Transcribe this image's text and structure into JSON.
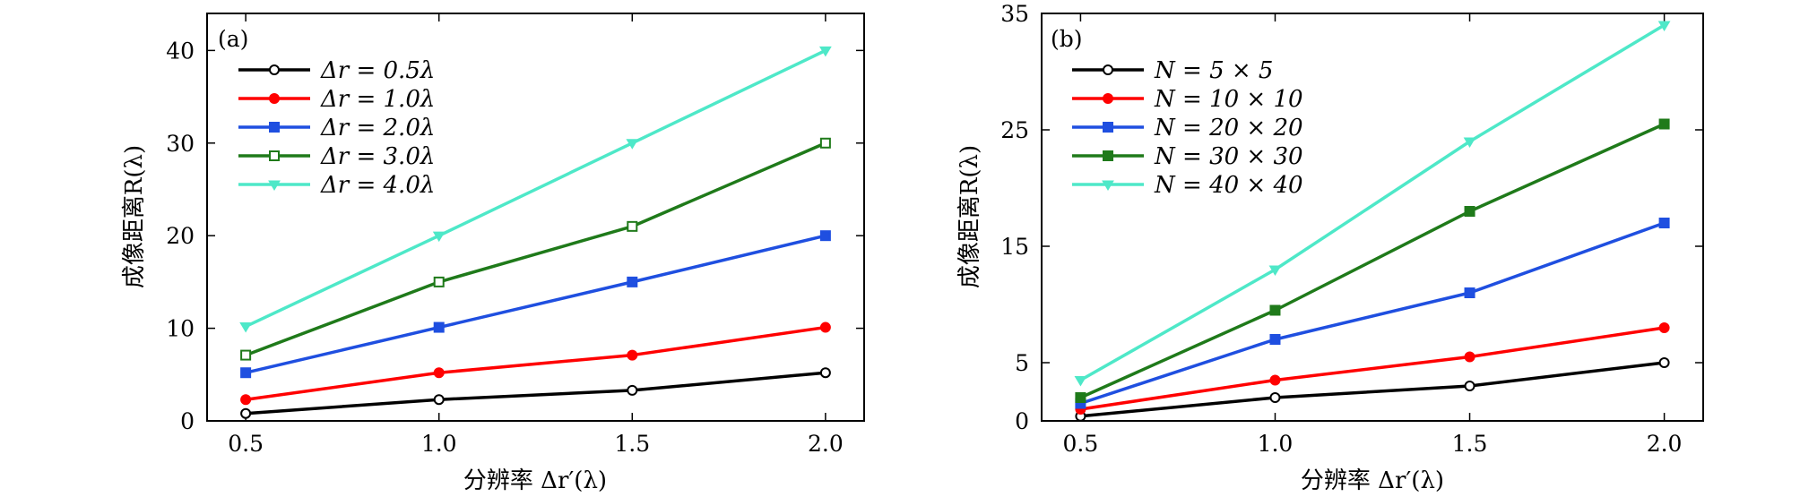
{
  "chart_data": [
    {
      "type": "line",
      "panel_label": "(a)",
      "xlabel": "分辨率 Δr′(λ)",
      "ylabel": "成像距离R(λ)",
      "x": [
        0.5,
        1.0,
        1.5,
        2.0
      ],
      "xlim": [
        0.4,
        2.1
      ],
      "ylim": [
        0,
        44
      ],
      "xticks": [
        0.5,
        1.0,
        1.5,
        2.0
      ],
      "xtick_labels": [
        "0.5",
        "1.0",
        "1.5",
        "2.0"
      ],
      "yticks": [
        0,
        10,
        20,
        30,
        40
      ],
      "ytick_labels": [
        "0",
        "10",
        "20",
        "30",
        "40"
      ],
      "grid": false,
      "legend_position": "top-left",
      "series": [
        {
          "name": "Δr = 0.5λ",
          "color": "#000000",
          "marker": "circle-open",
          "values": [
            0.8,
            2.3,
            3.3,
            5.2
          ]
        },
        {
          "name": "Δr = 1.0λ",
          "color": "#ff0000",
          "marker": "circle",
          "values": [
            2.3,
            5.2,
            7.1,
            10.1
          ]
        },
        {
          "name": "Δr = 2.0λ",
          "color": "#1f4fe0",
          "marker": "square",
          "values": [
            5.2,
            10.1,
            15.0,
            20.0
          ]
        },
        {
          "name": "Δr = 3.0λ",
          "color": "#1f7a1a",
          "marker": "square-open",
          "values": [
            7.1,
            15.0,
            21.0,
            30.0
          ]
        },
        {
          "name": "Δr = 4.0λ",
          "color": "#4ee8c8",
          "marker": "triangle-down",
          "values": [
            10.2,
            20.0,
            30.0,
            40.0
          ]
        }
      ]
    },
    {
      "type": "line",
      "panel_label": "(b)",
      "xlabel": "分辨率 Δr′(λ)",
      "ylabel": "成像距离R(λ)",
      "x": [
        0.5,
        1.0,
        1.5,
        2.0
      ],
      "xlim": [
        0.4,
        2.1
      ],
      "ylim": [
        0,
        35
      ],
      "xticks": [
        0.5,
        1.0,
        1.5,
        2.0
      ],
      "xtick_labels": [
        "0.5",
        "1.0",
        "1.5",
        "2.0"
      ],
      "yticks": [
        0,
        5,
        15,
        25,
        35
      ],
      "ytick_labels": [
        "0",
        "5",
        "15",
        "25",
        "35"
      ],
      "grid": false,
      "legend_position": "top-left",
      "series": [
        {
          "name": "N = 5 × 5",
          "color": "#000000",
          "marker": "circle-open",
          "values": [
            0.4,
            2.0,
            3.0,
            5.0
          ]
        },
        {
          "name": "N = 10 × 10",
          "color": "#ff0000",
          "marker": "circle",
          "values": [
            1.0,
            3.5,
            5.5,
            8.0
          ]
        },
        {
          "name": "N = 20 × 20",
          "color": "#1f4fe0",
          "marker": "square",
          "values": [
            1.5,
            7.0,
            11.0,
            17.0
          ]
        },
        {
          "name": "N = 30 × 30",
          "color": "#1f7a1a",
          "marker": "square",
          "values": [
            2.0,
            9.5,
            18.0,
            25.5
          ]
        },
        {
          "name": "N = 40 × 40",
          "color": "#4ee8c8",
          "marker": "triangle-down",
          "values": [
            3.5,
            13.0,
            24.0,
            34.0
          ]
        }
      ]
    }
  ]
}
